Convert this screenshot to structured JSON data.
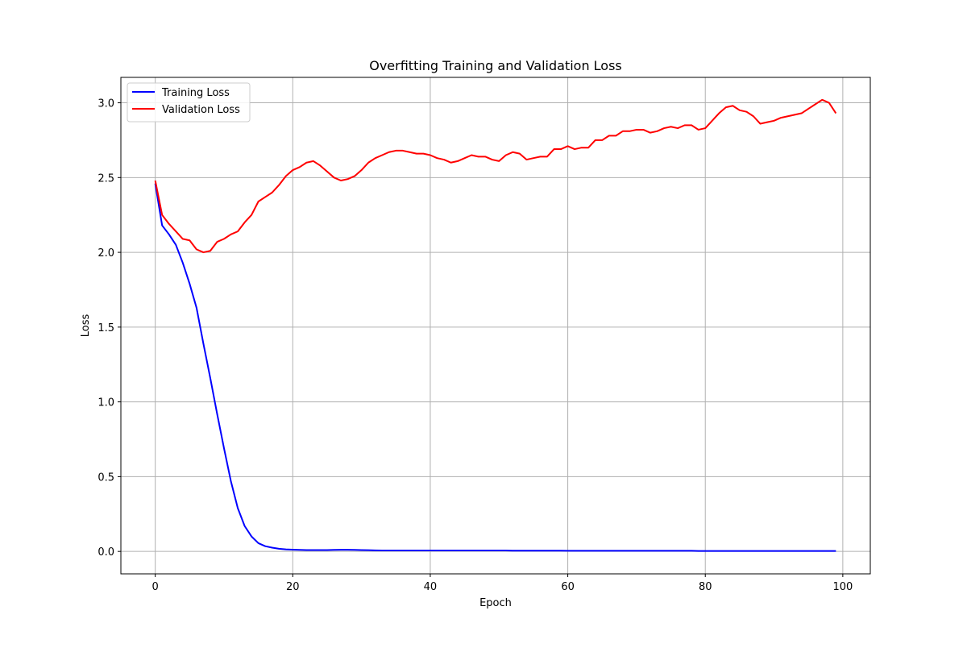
{
  "chart_data": {
    "type": "line",
    "title": "Overfitting Training and Validation Loss",
    "xlabel": "Epoch",
    "ylabel": "Loss",
    "xlim": [
      -5,
      104
    ],
    "ylim": [
      -0.15,
      3.17
    ],
    "xticks": [
      0,
      20,
      40,
      60,
      80,
      100
    ],
    "yticks": [
      0.0,
      0.5,
      1.0,
      1.5,
      2.0,
      2.5,
      3.0
    ],
    "xtick_labels": [
      "0",
      "20",
      "40",
      "60",
      "80",
      "100"
    ],
    "ytick_labels": [
      "0.0",
      "0.5",
      "1.0",
      "1.5",
      "2.0",
      "2.5",
      "3.0"
    ],
    "grid": true,
    "legend_position": "top-left",
    "x": [
      0,
      1,
      2,
      3,
      4,
      5,
      6,
      7,
      8,
      9,
      10,
      11,
      12,
      13,
      14,
      15,
      16,
      17,
      18,
      19,
      20,
      21,
      22,
      23,
      24,
      25,
      26,
      27,
      28,
      29,
      30,
      31,
      32,
      33,
      34,
      35,
      36,
      37,
      38,
      39,
      40,
      41,
      42,
      43,
      44,
      45,
      46,
      47,
      48,
      49,
      50,
      51,
      52,
      53,
      54,
      55,
      56,
      57,
      58,
      59,
      60,
      61,
      62,
      63,
      64,
      65,
      66,
      67,
      68,
      69,
      70,
      71,
      72,
      73,
      74,
      75,
      76,
      77,
      78,
      79,
      80,
      81,
      82,
      83,
      84,
      85,
      86,
      87,
      88,
      89,
      90,
      91,
      92,
      93,
      94,
      95,
      96,
      97,
      98,
      99
    ],
    "series": [
      {
        "name": "Training Loss",
        "color": "#0000ff",
        "values": [
          2.46,
          2.18,
          2.12,
          2.05,
          1.93,
          1.79,
          1.63,
          1.39,
          1.16,
          0.92,
          0.69,
          0.47,
          0.29,
          0.17,
          0.1,
          0.055,
          0.035,
          0.025,
          0.018,
          0.014,
          0.012,
          0.01,
          0.009,
          0.009,
          0.009,
          0.009,
          0.01,
          0.011,
          0.011,
          0.01,
          0.009,
          0.008,
          0.007,
          0.006,
          0.006,
          0.006,
          0.006,
          0.006,
          0.006,
          0.006,
          0.006,
          0.006,
          0.006,
          0.006,
          0.006,
          0.006,
          0.006,
          0.006,
          0.006,
          0.006,
          0.006,
          0.006,
          0.005,
          0.005,
          0.005,
          0.005,
          0.005,
          0.005,
          0.005,
          0.005,
          0.004,
          0.004,
          0.004,
          0.004,
          0.004,
          0.004,
          0.004,
          0.004,
          0.004,
          0.004,
          0.004,
          0.004,
          0.004,
          0.004,
          0.004,
          0.004,
          0.004,
          0.004,
          0.004,
          0.003,
          0.003,
          0.003,
          0.003,
          0.003,
          0.003,
          0.003,
          0.003,
          0.003,
          0.003,
          0.003,
          0.003,
          0.003,
          0.003,
          0.003,
          0.003,
          0.003,
          0.003,
          0.003,
          0.003,
          0.003
        ]
      },
      {
        "name": "Validation Loss",
        "color": "#ff0000",
        "values": [
          2.48,
          2.25,
          2.19,
          2.14,
          2.09,
          2.08,
          2.02,
          2.0,
          2.01,
          2.07,
          2.09,
          2.12,
          2.14,
          2.2,
          2.25,
          2.34,
          2.37,
          2.4,
          2.45,
          2.51,
          2.55,
          2.57,
          2.6,
          2.61,
          2.58,
          2.54,
          2.5,
          2.48,
          2.49,
          2.51,
          2.55,
          2.6,
          2.63,
          2.65,
          2.67,
          2.68,
          2.68,
          2.67,
          2.66,
          2.66,
          2.65,
          2.63,
          2.62,
          2.6,
          2.61,
          2.63,
          2.65,
          2.64,
          2.64,
          2.62,
          2.61,
          2.65,
          2.67,
          2.66,
          2.62,
          2.63,
          2.64,
          2.64,
          2.69,
          2.69,
          2.71,
          2.69,
          2.7,
          2.7,
          2.75,
          2.75,
          2.78,
          2.78,
          2.81,
          2.81,
          2.82,
          2.82,
          2.8,
          2.81,
          2.83,
          2.84,
          2.83,
          2.85,
          2.85,
          2.82,
          2.83,
          2.88,
          2.93,
          2.97,
          2.98,
          2.95,
          2.94,
          2.91,
          2.86,
          2.87,
          2.88,
          2.9,
          2.91,
          2.92,
          2.93,
          2.96,
          2.99,
          3.02,
          3.0,
          2.93
        ]
      }
    ]
  }
}
